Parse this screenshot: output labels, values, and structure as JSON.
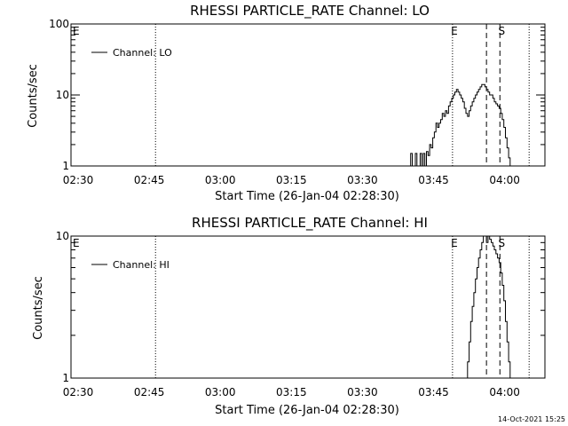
{
  "footer": {
    "timestamp": "14-Oct-2021 15:25"
  },
  "chart_data": [
    {
      "type": "line",
      "title": "RHESSI PARTICLE_RATE Channel: LO",
      "xlabel": "Start Time (26-Jan-04 02:28:30)",
      "ylabel": "Counts/sec",
      "y_scale": "log",
      "ylim": [
        1,
        100
      ],
      "xlim_minutes_after_start": [
        0,
        100
      ],
      "y_ticks": [
        "1",
        "10",
        "100"
      ],
      "x_ticks": [
        "02:30",
        "02:45",
        "03:00",
        "03:15",
        "03:30",
        "03:45",
        "04:00"
      ],
      "legend": {
        "entries": [
          "Channel: LO"
        ],
        "placement": "top-left"
      },
      "grid": false,
      "markers": [
        {
          "label": "E",
          "time": "02:28:30",
          "style": "none"
        },
        {
          "label": "",
          "time": "02:46:20",
          "style": "dotted"
        },
        {
          "label": "E",
          "time": "03:49:00",
          "style": "dotted"
        },
        {
          "label": "",
          "time": "03:56:10",
          "style": "dashed"
        },
        {
          "label": "S",
          "time": "03:59:00",
          "style": "dashed"
        },
        {
          "label": "",
          "time": "04:05:10",
          "style": "dotted"
        }
      ],
      "series": [
        {
          "x": [
            "03:39:50",
            "03:40:10",
            "03:40:30",
            "03:40:50",
            "03:41:10",
            "03:41:30",
            "03:41:50",
            "03:42:10",
            "03:42:30",
            "03:42:50",
            "03:43:10",
            "03:43:30",
            "03:43:50",
            "03:44:10",
            "03:44:30",
            "03:44:50",
            "03:45:10",
            "03:45:30",
            "03:45:50",
            "03:46:10",
            "03:46:30",
            "03:46:50",
            "03:47:10",
            "03:47:30",
            "03:47:50",
            "03:48:10",
            "03:48:30",
            "03:48:50",
            "03:49:10",
            "03:49:30",
            "03:49:50",
            "03:50:10",
            "03:50:30",
            "03:50:50",
            "03:51:10",
            "03:51:30",
            "03:51:50",
            "03:52:10",
            "03:52:30",
            "03:52:50",
            "03:53:10",
            "03:53:30",
            "03:53:50",
            "03:54:10",
            "03:54:30",
            "03:54:50",
            "03:55:10",
            "03:55:30",
            "03:55:50",
            "03:56:10",
            "03:56:30",
            "03:56:50",
            "03:57:10",
            "03:57:30",
            "03:57:50",
            "03:58:10",
            "03:58:30",
            "03:58:50",
            "03:59:10",
            "03:59:30",
            "03:59:50",
            "04:00:10",
            "04:00:30",
            "04:00:50",
            "04:01:10",
            "04:01:30",
            "04:01:50"
          ],
          "values": [
            1,
            1.5,
            1,
            1,
            1.5,
            1,
            1,
            1.5,
            1,
            1.5,
            1,
            1.6,
            1.4,
            2,
            1.8,
            2.5,
            3,
            4,
            3.5,
            4,
            4.5,
            5.5,
            5,
            6,
            5.5,
            7,
            8,
            9,
            10,
            11,
            12,
            11,
            10,
            9,
            8,
            6.5,
            5.5,
            5,
            6,
            7,
            8,
            9,
            10,
            11,
            12,
            13,
            14,
            14,
            13,
            12,
            11,
            10,
            10,
            9,
            8,
            7.5,
            7,
            6.5,
            5.5,
            4.5,
            3.5,
            2.5,
            1.8,
            1.3,
            1,
            1,
            1
          ]
        }
      ]
    },
    {
      "type": "line",
      "title": "RHESSI PARTICLE_RATE Channel: HI",
      "xlabel": "Start Time (26-Jan-04 02:28:30)",
      "ylabel": "Counts/sec",
      "y_scale": "log",
      "ylim": [
        1,
        10
      ],
      "xlim_minutes_after_start": [
        0,
        100
      ],
      "y_ticks": [
        "1",
        "10"
      ],
      "x_ticks": [
        "02:30",
        "02:45",
        "03:00",
        "03:15",
        "03:30",
        "03:45",
        "04:00"
      ],
      "legend": {
        "entries": [
          "Channel: HI"
        ],
        "placement": "top-left"
      },
      "grid": false,
      "markers": [
        {
          "label": "E",
          "time": "02:28:30",
          "style": "none"
        },
        {
          "label": "",
          "time": "02:46:20",
          "style": "dotted"
        },
        {
          "label": "E",
          "time": "03:49:00",
          "style": "dotted"
        },
        {
          "label": "",
          "time": "03:56:10",
          "style": "dashed"
        },
        {
          "label": "S",
          "time": "03:59:00",
          "style": "dashed"
        },
        {
          "label": "",
          "time": "04:05:10",
          "style": "dotted"
        }
      ],
      "series": [
        {
          "x": [
            "03:51:50",
            "03:52:10",
            "03:52:30",
            "03:52:50",
            "03:53:10",
            "03:53:30",
            "03:53:50",
            "03:54:10",
            "03:54:30",
            "03:54:50",
            "03:55:10",
            "03:55:30",
            "03:55:50",
            "03:56:10",
            "03:56:30",
            "03:56:50",
            "03:57:10",
            "03:57:30",
            "03:57:50",
            "03:58:10",
            "03:58:30",
            "03:58:50",
            "03:59:10",
            "03:59:30",
            "03:59:50",
            "04:00:10",
            "04:00:30",
            "04:00:50",
            "04:01:10",
            "04:01:30"
          ],
          "values": [
            1,
            1.3,
            1.8,
            2.5,
            3.2,
            4,
            5,
            6,
            7,
            8,
            9,
            10,
            10,
            9,
            10,
            9.5,
            9,
            8.5,
            8,
            7.5,
            7,
            6.5,
            5.5,
            4.5,
            3.5,
            2.5,
            1.8,
            1.3,
            1,
            1
          ]
        }
      ]
    }
  ]
}
